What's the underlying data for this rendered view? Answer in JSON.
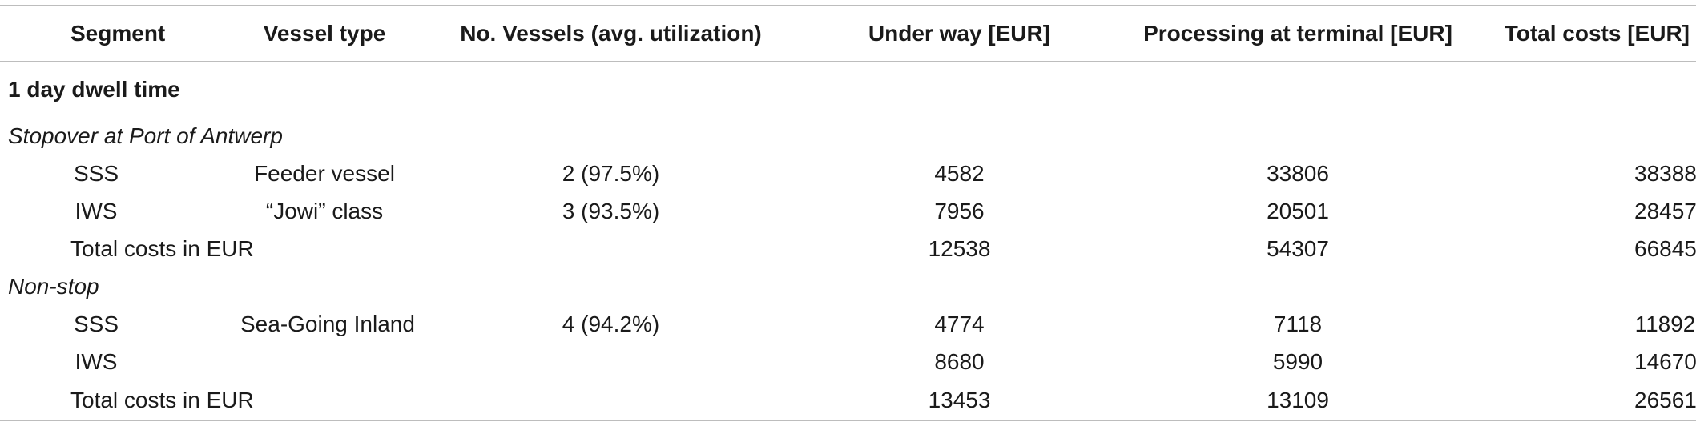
{
  "headers": {
    "segment": "Segment",
    "vessel_type": "Vessel type",
    "no_vessels": "No. Vessels (avg. utilization)",
    "under_way": "Under way [EUR]",
    "processing": "Processing at terminal [EUR]",
    "total": "Total costs [EUR]"
  },
  "section_title": "1 day dwell time",
  "groups": [
    {
      "title": "Stopover at Port of Antwerp",
      "rows": [
        {
          "segment": "SSS",
          "vessel_type": "Feeder vessel",
          "no_vessels": "2 (97.5%)",
          "under_way": "4582",
          "processing": "33806",
          "total": "38388"
        },
        {
          "segment": "IWS",
          "vessel_type": "“Jowi” class",
          "no_vessels": "3 (93.5%)",
          "under_way": "7956",
          "processing": "20501",
          "total": "28457"
        }
      ],
      "total_row": {
        "label": "Total costs in EUR",
        "under_way": "12538",
        "processing": "54307",
        "total": "66845"
      }
    },
    {
      "title": "Non-stop",
      "rows": [
        {
          "segment": "SSS",
          "vessel_type": "Sea-Going Inland",
          "no_vessels": "4 (94.2%)",
          "under_way": "4774",
          "processing": "7118",
          "total": "11892"
        },
        {
          "segment": "IWS",
          "vessel_type": "",
          "no_vessels": "",
          "under_way": "8680",
          "processing": "5990",
          "total": "14670"
        }
      ],
      "total_row": {
        "label": "Total costs in EUR",
        "under_way": "13453",
        "processing": "13109",
        "total": "26561"
      }
    }
  ]
}
